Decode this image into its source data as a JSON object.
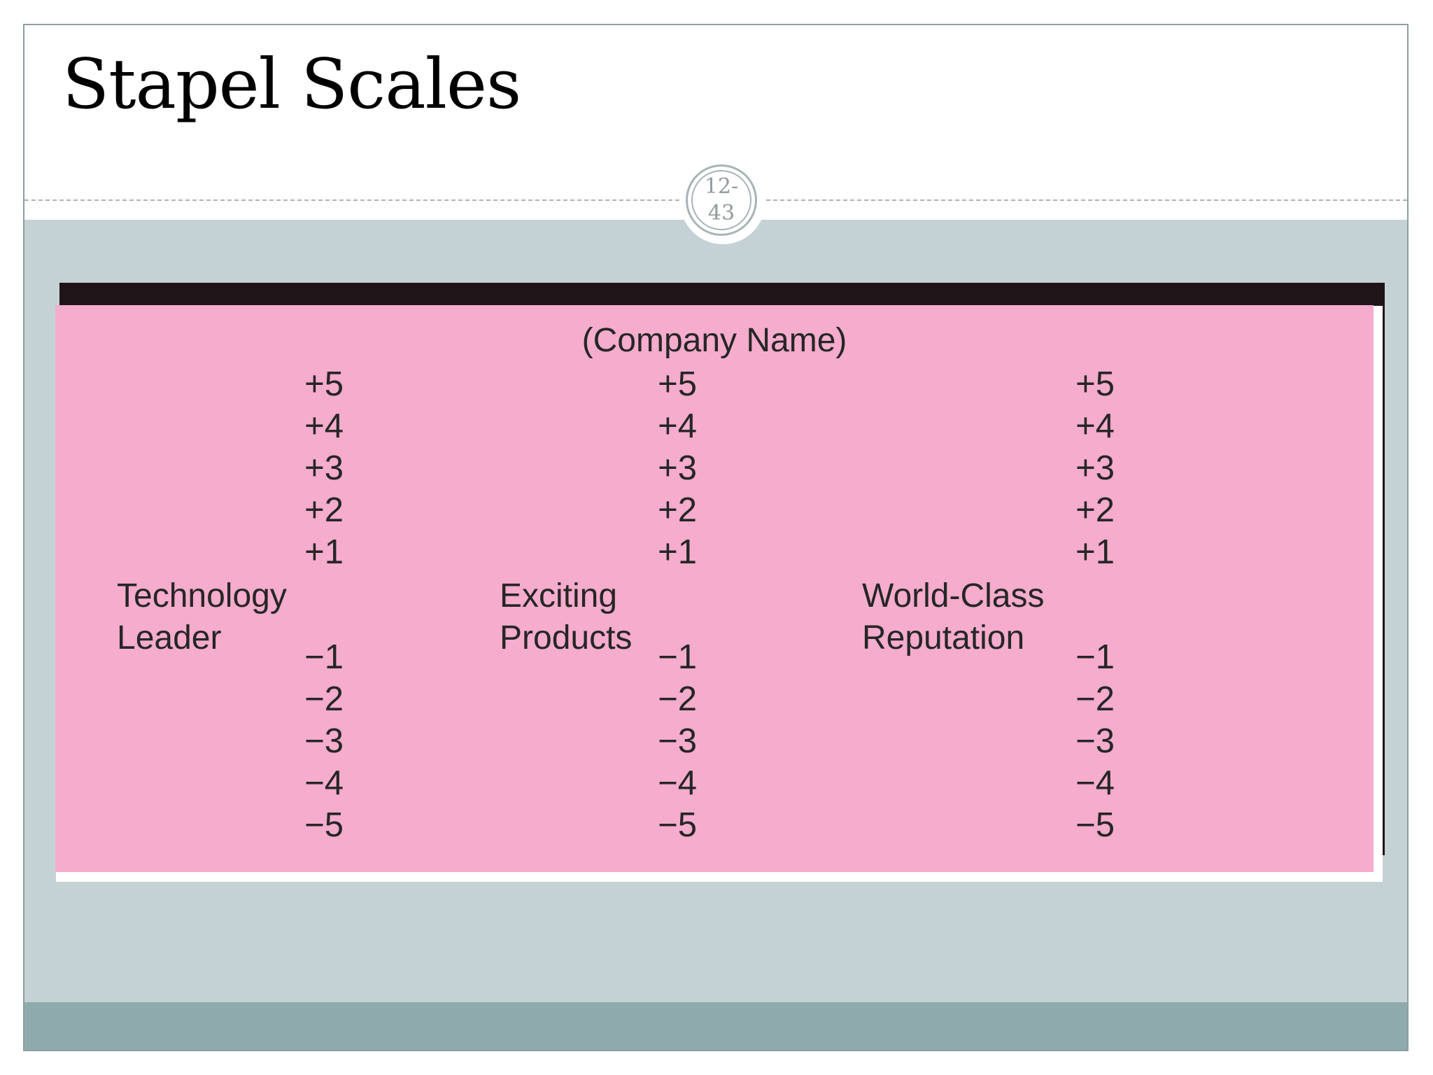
{
  "slide": {
    "title": "Stapel Scales",
    "page_badge": {
      "line1": "12-",
      "line2": "43"
    }
  },
  "figure": {
    "company_label": "(Company Name)",
    "scales": [
      {
        "attribute_line1": "Technology",
        "attribute_line2": "Leader",
        "positive": [
          "+5",
          "+4",
          "+3",
          "+2",
          "+1"
        ],
        "negative": [
          "−1",
          "−2",
          "−3",
          "−4",
          "−5"
        ]
      },
      {
        "attribute_line1": "Exciting",
        "attribute_line2": "Products",
        "positive": [
          "+5",
          "+4",
          "+3",
          "+2",
          "+1"
        ],
        "negative": [
          "−1",
          "−2",
          "−3",
          "−4",
          "−5"
        ]
      },
      {
        "attribute_line1": "World-Class",
        "attribute_line2": "Reputation",
        "positive": [
          "+5",
          "+4",
          "+3",
          "+2",
          "+1"
        ],
        "negative": [
          "−1",
          "−2",
          "−3",
          "−4",
          "−5"
        ]
      }
    ]
  },
  "colors": {
    "figure_background": "#f5accd",
    "content_band": "#c5d2d5",
    "footer_band": "#8eaaac"
  }
}
